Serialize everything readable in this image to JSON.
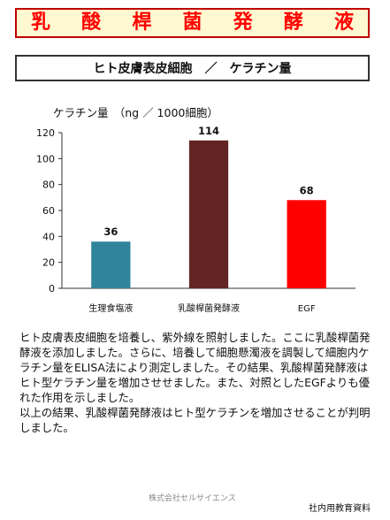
{
  "header": {
    "title_chars": [
      "乳",
      "酸",
      "桿",
      "菌",
      "発",
      "酵",
      "液"
    ],
    "subtitle": "ヒト皮膚表皮細胞　／　ケラチン量"
  },
  "chart_data": {
    "type": "bar",
    "title": "",
    "ylabel": "ケラチン量　（ng ／ 1000細胞）",
    "xlabel": "",
    "categories": [
      "生理食塩液",
      "乳酸桿菌発酵液",
      "EGF"
    ],
    "values": [
      36,
      114,
      68
    ],
    "colors": [
      "#31849b",
      "#632523",
      "#ff0000"
    ],
    "ylim": [
      0,
      120
    ],
    "yticks": [
      0,
      20,
      40,
      60,
      80,
      100,
      120
    ],
    "grid": false,
    "data_labels": true
  },
  "description": {
    "paragraphs": [
      "ヒト皮膚表皮細胞を培養し、紫外線を照射しました。ここに乳酸桿菌発酵液を添加しました。さらに、培養して細胞懸濁液を調製して細胞内ケラチン量をELISA法により測定しました。その結果、乳酸桿菌発酵液はヒト型ケラチン量を増加させせました。また、対照としたEGFよりも優れた作用を示しました。",
      "以上の結果、乳酸桿菌発酵液はヒト型ケラチンを増加させることが判明しました。"
    ]
  },
  "footer": {
    "company": "株式会社セルサイエンス",
    "note": "社内用教育資料"
  }
}
